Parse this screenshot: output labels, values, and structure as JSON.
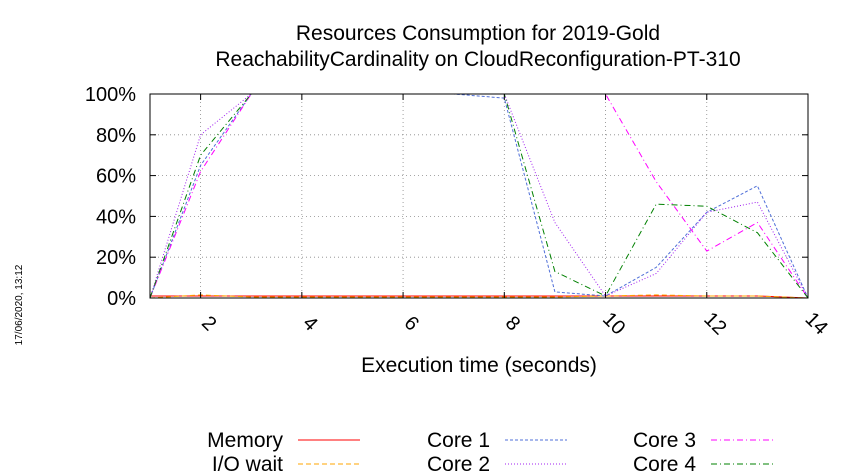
{
  "chart_data": {
    "type": "line",
    "title_lines": [
      "Resources Consumption for 2019-Gold",
      "ReachabilityCardinality on CloudReconfiguration-PT-310"
    ],
    "xlabel": "Execution time (seconds)",
    "ylabel": "",
    "xlim": [
      1,
      14
    ],
    "ylim": [
      0,
      100
    ],
    "x_ticks": [
      2,
      4,
      6,
      8,
      10,
      12,
      14
    ],
    "x_tick_labels": [
      "2",
      "4",
      "6",
      "8",
      "10",
      "12",
      "14"
    ],
    "y_ticks": [
      0,
      20,
      40,
      60,
      80,
      100
    ],
    "y_tick_labels": [
      "0%",
      "20%",
      "40%",
      "60%",
      "80%",
      "100%"
    ],
    "grid": true,
    "legend_position": "bottom",
    "timestamp": "17/06/2020, 13:12",
    "series": [
      {
        "name": "Memory",
        "color": "#ff0000",
        "dash": "solid",
        "x": [
          1,
          2,
          3,
          4,
          5,
          6,
          7,
          8,
          9,
          10,
          11,
          12,
          13,
          14
        ],
        "values": [
          1,
          1,
          1,
          1,
          1,
          1,
          1,
          1,
          1,
          1,
          1,
          1,
          1,
          0
        ]
      },
      {
        "name": "I/O wait",
        "color": "#ffa500",
        "dash": "dashed",
        "x": [
          1,
          2,
          3,
          4,
          5,
          6,
          7,
          8,
          9,
          10,
          11,
          12,
          13,
          14
        ],
        "values": [
          0,
          1.5,
          0.5,
          0.5,
          0.5,
          0.5,
          0.5,
          0.5,
          0.5,
          1,
          1.5,
          1,
          1,
          0
        ]
      },
      {
        "name": "Core 1",
        "color": "#4f6fd8",
        "dash": "fine",
        "x": [
          1,
          2,
          3,
          4,
          5,
          6,
          7,
          8,
          9,
          10,
          11,
          12,
          13,
          14
        ],
        "values": [
          0,
          65,
          100,
          100,
          100,
          100,
          100,
          98,
          3,
          1,
          15,
          42,
          55,
          0
        ]
      },
      {
        "name": "Core 2",
        "color": "#a020f0",
        "dash": "dotted",
        "x": [
          1,
          2,
          3,
          4,
          5,
          6,
          7,
          8,
          9,
          10,
          11,
          12,
          13,
          14
        ],
        "values": [
          0,
          80,
          100,
          100,
          100,
          100,
          100,
          100,
          37,
          1,
          12,
          42,
          47,
          0
        ]
      },
      {
        "name": "Core 3",
        "color": "#ff00ff",
        "dash": "dashdot",
        "x": [
          1,
          2,
          3,
          4,
          5,
          6,
          7,
          8,
          9,
          10,
          11,
          12,
          13,
          14
        ],
        "values": [
          0,
          62,
          100,
          100,
          100,
          100,
          100,
          100,
          100,
          100,
          57,
          23,
          37,
          0
        ]
      },
      {
        "name": "Core 4",
        "color": "#008000",
        "dash": "dashdot",
        "x": [
          1,
          2,
          3,
          4,
          5,
          6,
          7,
          8,
          9,
          10,
          11,
          12,
          13,
          14
        ],
        "values": [
          0,
          70,
          100,
          100,
          100,
          100,
          100,
          100,
          13,
          1,
          46,
          45,
          32,
          0
        ]
      }
    ]
  }
}
